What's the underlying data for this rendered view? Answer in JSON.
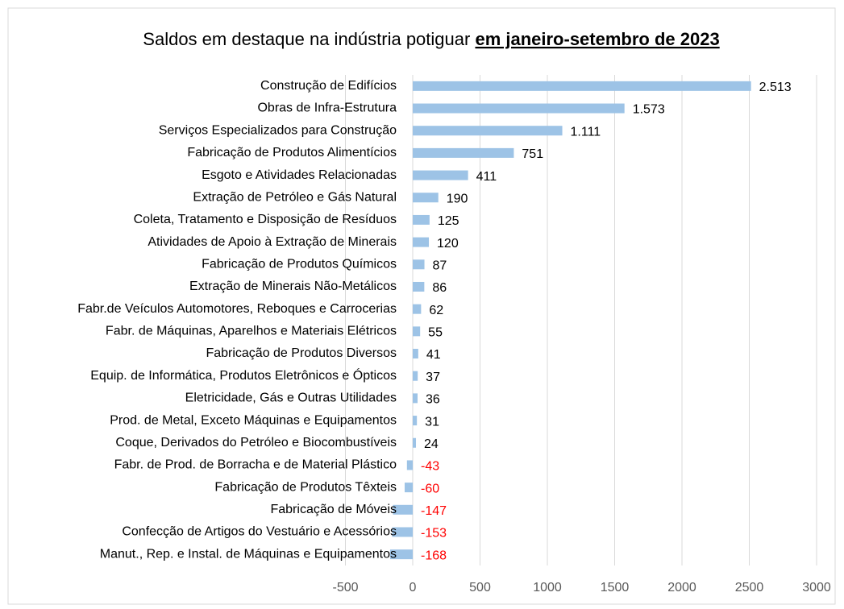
{
  "chart_data": {
    "type": "bar",
    "orientation": "horizontal",
    "title": "Saldos em destaque na indústria potiguar",
    "title_highlight": "em janeiro-setembro de 2023",
    "categories": [
      "Construção de Edifícios",
      "Obras de Infra-Estrutura",
      "Serviços Especializados para Construção",
      "Fabricação de Produtos Alimentícios",
      "Esgoto e Atividades Relacionadas",
      "Extração de Petróleo e Gás Natural",
      "Coleta, Tratamento e Disposição de Resíduos",
      "Atividades de Apoio à Extração de Minerais",
      "Fabricação de Produtos Químicos",
      "Extração de Minerais Não-Metálicos",
      "Fabr.de Veículos Automotores, Reboques e Carrocerias",
      "Fabr. de Máquinas, Aparelhos e Materiais Elétricos",
      "Fabricação de Produtos Diversos",
      "Equip. de Informática, Produtos Eletrônicos e Ópticos",
      "Eletricidade, Gás e Outras Utilidades",
      "Prod. de Metal, Exceto Máquinas e Equipamentos",
      "Coque, Derivados do Petróleo e Biocombustíveis",
      "Fabr. de Prod. de Borracha e de Material Plástico",
      "Fabricação de Produtos Têxteis",
      "Fabricação de Móveis",
      "Confecção de Artigos do Vestuário e Acessórios",
      "Manut., Rep. e Instal. de Máquinas e Equipamentos"
    ],
    "values": [
      2513,
      1573,
      1111,
      751,
      411,
      190,
      125,
      120,
      87,
      86,
      62,
      55,
      41,
      37,
      36,
      31,
      24,
      -43,
      -60,
      -147,
      -153,
      -168
    ],
    "value_labels": [
      "2.513",
      "1.573",
      "1.111",
      "751",
      "411",
      "190",
      "125",
      "120",
      "87",
      "86",
      "62",
      "55",
      "41",
      "37",
      "36",
      "31",
      "24",
      "-43",
      "-60",
      "-147",
      "-153",
      "-168"
    ],
    "color": "#9dc3e6",
    "positive_label_color": "#000000",
    "negative_label_color": "#ff0000",
    "xlim": [
      -500,
      3000
    ],
    "xticks": [
      -500,
      0,
      500,
      1000,
      1500,
      2000,
      2500,
      3000
    ],
    "grid": true
  }
}
